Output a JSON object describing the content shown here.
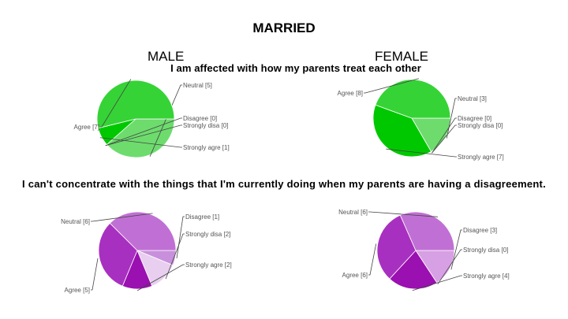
{
  "page": {
    "title": "MARRIED",
    "male_label": "MALE",
    "female_label": "FEMALE",
    "question1": "I am affected with how my parents treat each other",
    "question2": "I can't concentrate with the things that I'm currently doing when my parents are having a disagreement."
  },
  "chart_data": [
    {
      "type": "pie",
      "group": "MALE",
      "question": "I am affected with how my parents treat each other",
      "slices": [
        {
          "label": "Neutral [5]",
          "value": 5,
          "color": "#6ddc6d"
        },
        {
          "label": "Disagree [0]",
          "value": 0,
          "color": "#b8ecb8"
        },
        {
          "label": "Strongly disa [0]",
          "value": 0,
          "color": "#8fe08f"
        },
        {
          "label": "Strongly agre [1]",
          "value": 1,
          "color": "#00c800"
        },
        {
          "label": "Agree [7]",
          "value": 7,
          "color": "#36d336"
        }
      ]
    },
    {
      "type": "pie",
      "group": "FEMALE",
      "question": "I am affected with how my parents treat each other",
      "slices": [
        {
          "label": "Neutral [3]",
          "value": 3,
          "color": "#6ddc6d"
        },
        {
          "label": "Disagree [0]",
          "value": 0,
          "color": "#b8ecb8"
        },
        {
          "label": "Strongly disa [0]",
          "value": 0,
          "color": "#8fe08f"
        },
        {
          "label": "Strongly agre [7]",
          "value": 7,
          "color": "#00c800"
        },
        {
          "label": "Agree [8]",
          "value": 8,
          "color": "#36d336"
        }
      ]
    },
    {
      "type": "pie",
      "group": "MALE",
      "question": "I can't concentrate with the things that I'm currently doing when my parents are having a disagreement.",
      "slices": [
        {
          "label": "Disagree [1]",
          "value": 1,
          "color": "#c890dc"
        },
        {
          "label": "Strongly disa [2]",
          "value": 2,
          "color": "#e8cff0"
        },
        {
          "label": "Strongly agre [2]",
          "value": 2,
          "color": "#9a10b0"
        },
        {
          "label": "Agree [5]",
          "value": 5,
          "color": "#a830c0"
        },
        {
          "label": "Neutral [6]",
          "value": 6,
          "color": "#c070d4"
        }
      ]
    },
    {
      "type": "pie",
      "group": "FEMALE",
      "question": "I can't concentrate with the things that I'm currently doing when my parents are having a disagreement.",
      "slices": [
        {
          "label": "Disagree [3]",
          "value": 3,
          "color": "#d8a0e4"
        },
        {
          "label": "Strongly disa [0]",
          "value": 0,
          "color": "#e8cff0"
        },
        {
          "label": "Strongly agre [4]",
          "value": 4,
          "color": "#9a10b0"
        },
        {
          "label": "Agree [6]",
          "value": 6,
          "color": "#a830c0"
        },
        {
          "label": "Neutral [6]",
          "value": 6,
          "color": "#c070d4"
        }
      ]
    }
  ]
}
